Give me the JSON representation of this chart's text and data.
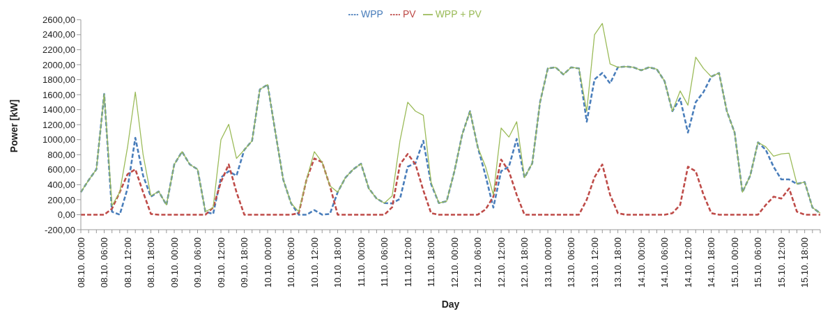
{
  "chart_data": {
    "type": "line",
    "xlabel": "Day",
    "ylabel": "Power [kW]",
    "legend": "top",
    "marker": "none",
    "grid": false,
    "categories": [
      "08.10. 00:00",
      null,
      null,
      "08.10. 06:00",
      null,
      null,
      "08.10. 12:00",
      null,
      null,
      "08.10. 18:00",
      null,
      null,
      "09.10. 00:00",
      null,
      null,
      "09.10. 06:00",
      null,
      null,
      "09.10. 12:00",
      null,
      null,
      "09.10. 18:00",
      null,
      null,
      "10.10. 00:00",
      null,
      null,
      "10.10. 06:00",
      null,
      null,
      "10.10. 12:00",
      null,
      null,
      "10.10. 18:00",
      null,
      null,
      "11.10. 00:00",
      null,
      null,
      "11.10. 06:00",
      null,
      null,
      "11.10. 12:00",
      null,
      null,
      "11.10. 18:00",
      null,
      null,
      "12.10. 00:00",
      null,
      null,
      "12.10. 06:00",
      null,
      null,
      "12.10. 12:00",
      null,
      null,
      "12.10. 18:00",
      null,
      null,
      "13.10. 00:00",
      null,
      null,
      "13.10. 06:00",
      null,
      null,
      "13.10. 12:00",
      null,
      null,
      "13.10. 18:00",
      null,
      null,
      "14.10. 00:00",
      null,
      null,
      "14.10. 06:00",
      null,
      null,
      "14.10. 12:00",
      null,
      null,
      "14.10. 18:00",
      null,
      null,
      "15.10. 00:00",
      null,
      null,
      "15.10. 06:00",
      null,
      null,
      "15.10. 12:00",
      null,
      null,
      "15.10. 18:00",
      null,
      null
    ],
    "ylim": [
      -200,
      2600
    ],
    "yticks": [
      {
        "value": -200,
        "label": "-200,00"
      },
      {
        "value": 0,
        "label": "0,00"
      },
      {
        "value": 200,
        "label": "200,00"
      },
      {
        "value": 400,
        "label": "400,00"
      },
      {
        "value": 600,
        "label": "600,00"
      },
      {
        "value": 800,
        "label": "800,00"
      },
      {
        "value": 1000,
        "label": "1000,00"
      },
      {
        "value": 1200,
        "label": "1200,00"
      },
      {
        "value": 1400,
        "label": "1400,00"
      },
      {
        "value": 1600,
        "label": "1600,00"
      },
      {
        "value": 1800,
        "label": "1800,00"
      },
      {
        "value": 2000,
        "label": "2000,00"
      },
      {
        "value": 2200,
        "label": "2200,00"
      },
      {
        "value": 2400,
        "label": "2400,00"
      },
      {
        "value": 2600,
        "label": "2600,00"
      }
    ],
    "series": [
      {
        "name": "WPP",
        "color": "#4a7ebb",
        "line_style": "dashed",
        "values": [
          300,
          460,
          605,
          1610,
          40,
          0,
          350,
          1025,
          520,
          240,
          310,
          130,
          670,
          840,
          670,
          605,
          40,
          10,
          495,
          580,
          520,
          865,
          985,
          1670,
          1735,
          1095,
          470,
          155,
          0,
          0,
          60,
          0,
          10,
          300,
          495,
          605,
          680,
          350,
          215,
          155,
          150,
          210,
          640,
          690,
          985,
          410,
          155,
          180,
          580,
          1070,
          1380,
          900,
          520,
          95,
          580,
          640,
          1010,
          495,
          685,
          1500,
          1950,
          1965,
          1870,
          1965,
          1950,
          1240,
          1805,
          1890,
          1750,
          1965,
          1975,
          1965,
          1925,
          1965,
          1940,
          1780,
          1380,
          1550,
          1095,
          1500,
          1635,
          1840,
          1890,
          1380,
          1095,
          300,
          520,
          965,
          865,
          640,
          470,
          470,
          410,
          435,
          95,
          20
        ]
      },
      {
        "name": "PV",
        "color": "#be4b48",
        "line_style": "dashed",
        "values": [
          0,
          0,
          0,
          0,
          80,
          300,
          540,
          605,
          300,
          10,
          0,
          0,
          0,
          0,
          0,
          0,
          0,
          95,
          435,
          670,
          300,
          0,
          0,
          0,
          0,
          0,
          0,
          0,
          20,
          470,
          750,
          700,
          385,
          0,
          0,
          0,
          0,
          0,
          0,
          0,
          100,
          670,
          810,
          670,
          325,
          20,
          0,
          0,
          0,
          0,
          0,
          0,
          70,
          240,
          735,
          580,
          265,
          0,
          0,
          0,
          0,
          0,
          0,
          0,
          0,
          200,
          500,
          670,
          265,
          20,
          0,
          0,
          0,
          0,
          0,
          0,
          20,
          130,
          640,
          580,
          265,
          20,
          0,
          0,
          0,
          0,
          0,
          0,
          130,
          240,
          215,
          350,
          40,
          0,
          0,
          0
        ]
      },
      {
        "name": "WPP + PV",
        "color": "#9bbb59",
        "line_style": "solid",
        "values": [
          300,
          460,
          605,
          1610,
          120,
          300,
          900,
          1635,
          800,
          250,
          310,
          130,
          670,
          840,
          670,
          605,
          40,
          95,
          1000,
          1205,
          750,
          865,
          985,
          1670,
          1735,
          1095,
          470,
          155,
          40,
          470,
          840,
          700,
          385,
          300,
          495,
          605,
          680,
          350,
          215,
          155,
          250,
          985,
          1500,
          1380,
          1325,
          430,
          155,
          180,
          580,
          1070,
          1380,
          900,
          640,
          265,
          1155,
          1035,
          1240,
          495,
          685,
          1500,
          1950,
          1965,
          1870,
          1965,
          1950,
          1380,
          2400,
          2550,
          2010,
          1965,
          1975,
          1965,
          1925,
          1965,
          1940,
          1780,
          1380,
          1650,
          1460,
          2100,
          1950,
          1840,
          1890,
          1380,
          1095,
          300,
          520,
          965,
          905,
          780,
          810,
          820,
          410,
          435,
          95,
          20
        ]
      }
    ]
  }
}
